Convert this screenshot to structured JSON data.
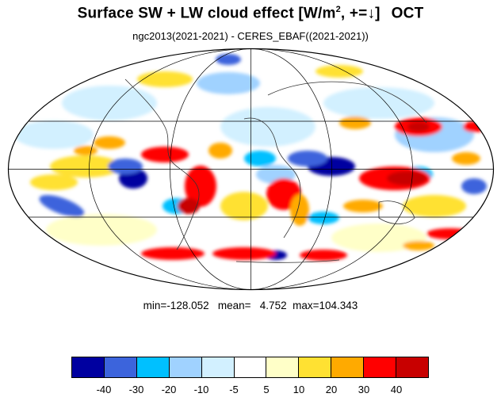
{
  "title": {
    "prefix": "Surface SW + LW cloud effect [W/m",
    "superscript": "2",
    "suffix": ", +=↓]",
    "month": "OCT"
  },
  "subtitle": "ngc2013(2021-2021) - CERES_EBAF((2021-2021))",
  "stats": {
    "min_label": "min=",
    "min_value": "-128.052",
    "mean_label": "mean=",
    "mean_value": "4.752",
    "max_label": "max=",
    "max_value": "104.343"
  },
  "map": {
    "projection": "mollweide",
    "grid": true
  },
  "colorbar": {
    "colors": [
      "#0000a0",
      "#3c64dc",
      "#00c0ff",
      "#a0d2ff",
      "#d2f0ff",
      "#ffffff",
      "#ffffc8",
      "#ffe132",
      "#ffaa00",
      "#ff0000",
      "#c80000"
    ],
    "labels": [
      "-40",
      "-30",
      "-20",
      "-10",
      "-5",
      "5",
      "10",
      "20",
      "30",
      "40"
    ]
  },
  "chart_data": {
    "type": "heatmap",
    "levels": [
      -40,
      -30,
      -20,
      -10,
      -5,
      5,
      10,
      20,
      30,
      40
    ],
    "summary": {
      "min": -128.052,
      "mean": 4.752,
      "max": 104.343
    }
  }
}
